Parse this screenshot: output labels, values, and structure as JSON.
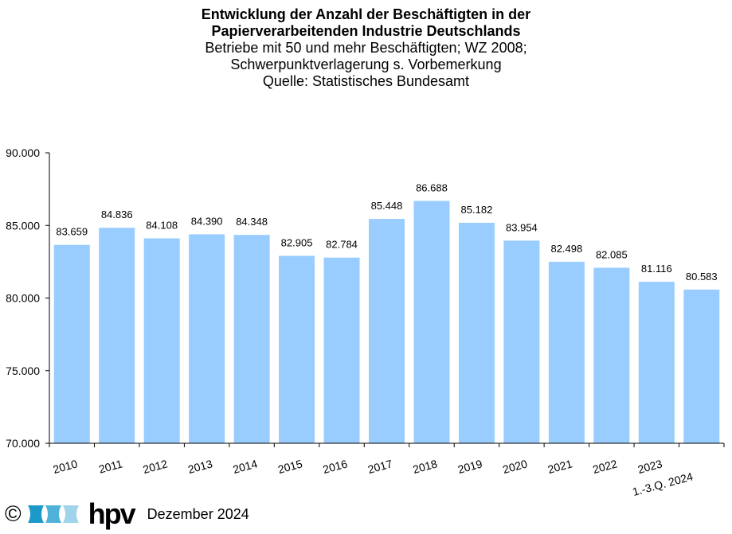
{
  "chart_data": {
    "type": "bar",
    "title": "Entwicklung der Anzahl der Beschäftigten in der",
    "title_line2": "Papierverarbeitenden Industrie Deutschlands",
    "subtitle": [
      "Betriebe mit 50 und mehr  Beschäftigten; WZ 2008;",
      "Schwerpunktverlagerung  s. Vorbemerkung",
      "Quelle:  Statistisches Bundesamt"
    ],
    "categories": [
      "2010",
      "2011",
      "2012",
      "2013",
      "2014",
      "2015",
      "2016",
      "2017",
      "2018",
      "2019",
      "2020",
      "2021",
      "2022",
      "2023",
      "1.-3.Q. 2024"
    ],
    "values": [
      83659,
      84836,
      84108,
      84390,
      84348,
      82905,
      82784,
      85448,
      86688,
      85182,
      83954,
      82498,
      82085,
      81116,
      80583
    ],
    "data_labels": [
      "83.659",
      "84.836",
      "84.108",
      "84.390",
      "84.348",
      "82.905",
      "82.784",
      "85.448",
      "86.688",
      "85.182",
      "83.954",
      "82.498",
      "82.085",
      "81.116",
      "80.583"
    ],
    "ylim": [
      70000,
      90000
    ],
    "yticks": [
      70000,
      75000,
      80000,
      85000,
      90000
    ],
    "ytick_labels": [
      "70.000",
      "75.000",
      "80.000",
      "85.000",
      "90.000"
    ],
    "xlabel": "",
    "ylabel": "",
    "bar_color": "#99ccff",
    "grid": false
  },
  "footer": {
    "copyright": "©",
    "logo_text": "hpv",
    "date": "Dezember 2024"
  }
}
